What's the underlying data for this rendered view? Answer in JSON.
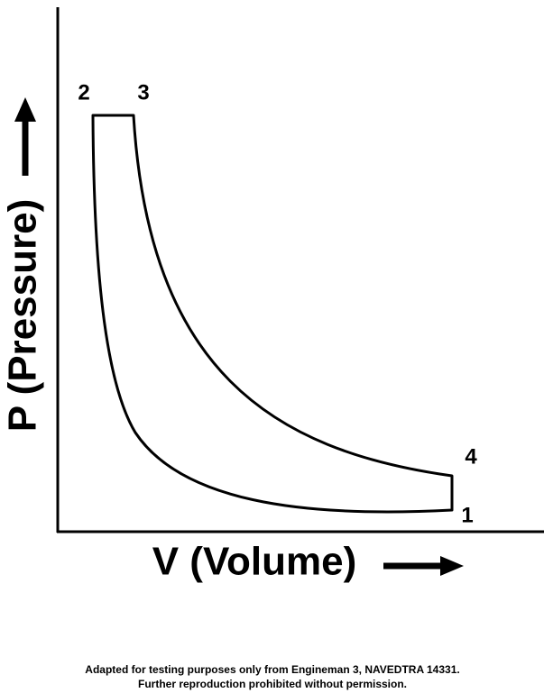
{
  "points": [
    {
      "label": "1"
    },
    {
      "label": "2"
    },
    {
      "label": "3"
    },
    {
      "label": "4"
    }
  ],
  "axes": {
    "y_label": "P (Pressure)",
    "x_label": "V (Volume)"
  },
  "footer": {
    "lines": [
      "Adapted for testing purposes only from Engineman 3, NAVEDTRA 14331.",
      "Further reproduction prohibited without permission."
    ]
  }
}
